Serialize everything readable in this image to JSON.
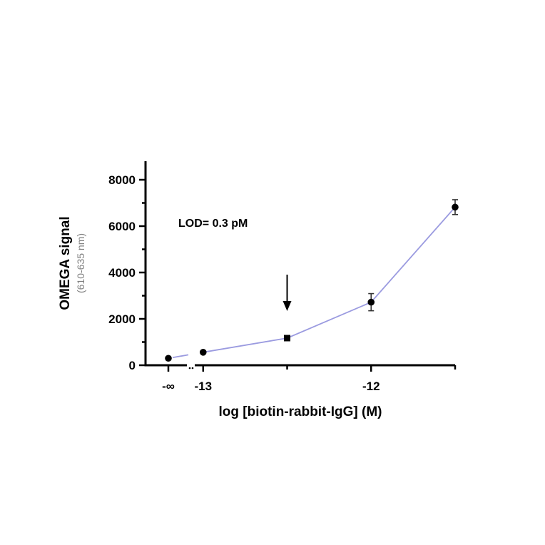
{
  "chart_data": {
    "type": "line",
    "title": "",
    "xlabel": "log [biotin-rabbit-IgG] (M)",
    "ylabel": "OMEGA signal",
    "ylabel_sub": "(610-635 nm)",
    "ylim": [
      0,
      8800
    ],
    "yticks": [
      0,
      2000,
      4000,
      6000,
      8000
    ],
    "y_tick_labels": [
      "0",
      "2000",
      "4000",
      "6000",
      "8000"
    ],
    "x_tick_labels": [
      "-∞",
      "-13",
      "-12"
    ],
    "x_tick_values": [
      null,
      -13,
      -12
    ],
    "xlim_main": [
      -13.05,
      -11.5
    ],
    "x_axis_break": true,
    "grid": false,
    "legend": "none",
    "line_color": "#9b9be0",
    "marker_color": "#000000",
    "annotations": [
      {
        "text": "LOD= 0.3 pM",
        "arrow_at_x": -12.5,
        "arrow_direction": "down"
      }
    ],
    "series": [
      {
        "points": [
          {
            "x": null,
            "x_label": "-∞",
            "y": 300,
            "err": 0,
            "marker": "circle"
          },
          {
            "x": -13.0,
            "y": 560,
            "err": 0,
            "marker": "circle"
          },
          {
            "x": -12.5,
            "y": 1170,
            "err": 50,
            "marker": "square"
          },
          {
            "x": -12.0,
            "y": 2720,
            "err": 370,
            "marker": "circle"
          },
          {
            "x": -11.5,
            "y": 6820,
            "err": 320,
            "marker": "circle"
          }
        ]
      }
    ]
  }
}
